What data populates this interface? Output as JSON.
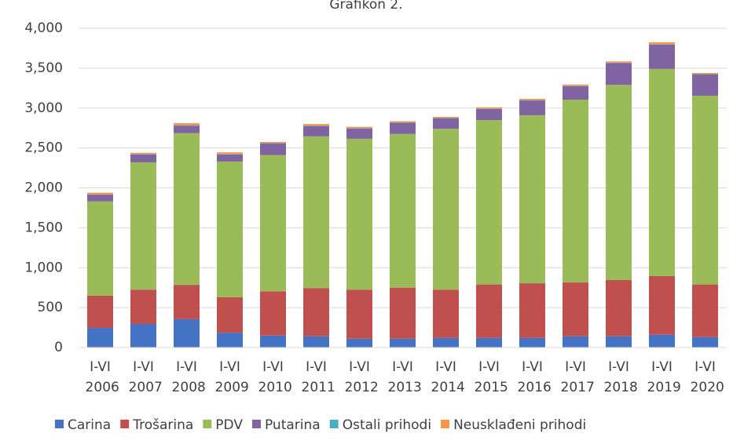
{
  "chart_data": {
    "type": "stacked_bar",
    "title": "Grafikon 2.",
    "categories": [
      "I-VI 2006",
      "I-VI 2007",
      "I-VI 2008",
      "I-VI 2009",
      "I-VI 2010",
      "I-VI 2011",
      "I-VI 2012",
      "I-VI 2013",
      "I-VI 2014",
      "I-VI 2015",
      "I-VI 2016",
      "I-VI 2017",
      "I-VI 2018",
      "I-VI 2019",
      "I-VI 2020"
    ],
    "series": [
      {
        "name": "Carina",
        "color": "#4472c4",
        "values": [
          245,
          295,
          355,
          185,
          150,
          140,
          110,
          110,
          120,
          120,
          120,
          140,
          140,
          160,
          130
        ]
      },
      {
        "name": "Trošarina",
        "color": "#c0504d",
        "values": [
          405,
          430,
          430,
          445,
          555,
          605,
          615,
          640,
          605,
          670,
          685,
          675,
          705,
          735,
          660
        ]
      },
      {
        "name": "PDV",
        "color": "#9bbb59",
        "values": [
          1180,
          1595,
          1900,
          1700,
          1705,
          1900,
          1890,
          1925,
          2015,
          2060,
          2105,
          2290,
          2445,
          2595,
          2365
        ]
      },
      {
        "name": "Putarina",
        "color": "#8064a2",
        "values": [
          85,
          100,
          95,
          90,
          145,
          130,
          130,
          140,
          130,
          140,
          185,
          170,
          275,
          305,
          265
        ]
      },
      {
        "name": "Ostali prihodi",
        "color": "#4bacc6",
        "values": [
          5,
          5,
          5,
          5,
          5,
          5,
          5,
          5,
          5,
          5,
          5,
          5,
          5,
          5,
          5
        ]
      },
      {
        "name": "Neusklađeni prihodi",
        "color": "#f79646",
        "values": [
          20,
          15,
          25,
          20,
          15,
          20,
          15,
          15,
          15,
          15,
          15,
          15,
          15,
          25,
          15
        ]
      }
    ],
    "ylim": [
      0,
      4000
    ],
    "yticks": [
      0,
      500,
      {
        "value": 1000,
        "label": "1,000"
      },
      {
        "value": 1500,
        "label": "1,500"
      },
      {
        "value": 2000,
        "label": "2,000"
      },
      {
        "value": 2500,
        "label": "2,500"
      },
      {
        "value": 3000,
        "label": "3,000"
      },
      {
        "value": 3500,
        "label": "3,500"
      },
      {
        "value": 4000,
        "label": "4,000"
      }
    ],
    "grid": true,
    "legend": "bottom"
  }
}
